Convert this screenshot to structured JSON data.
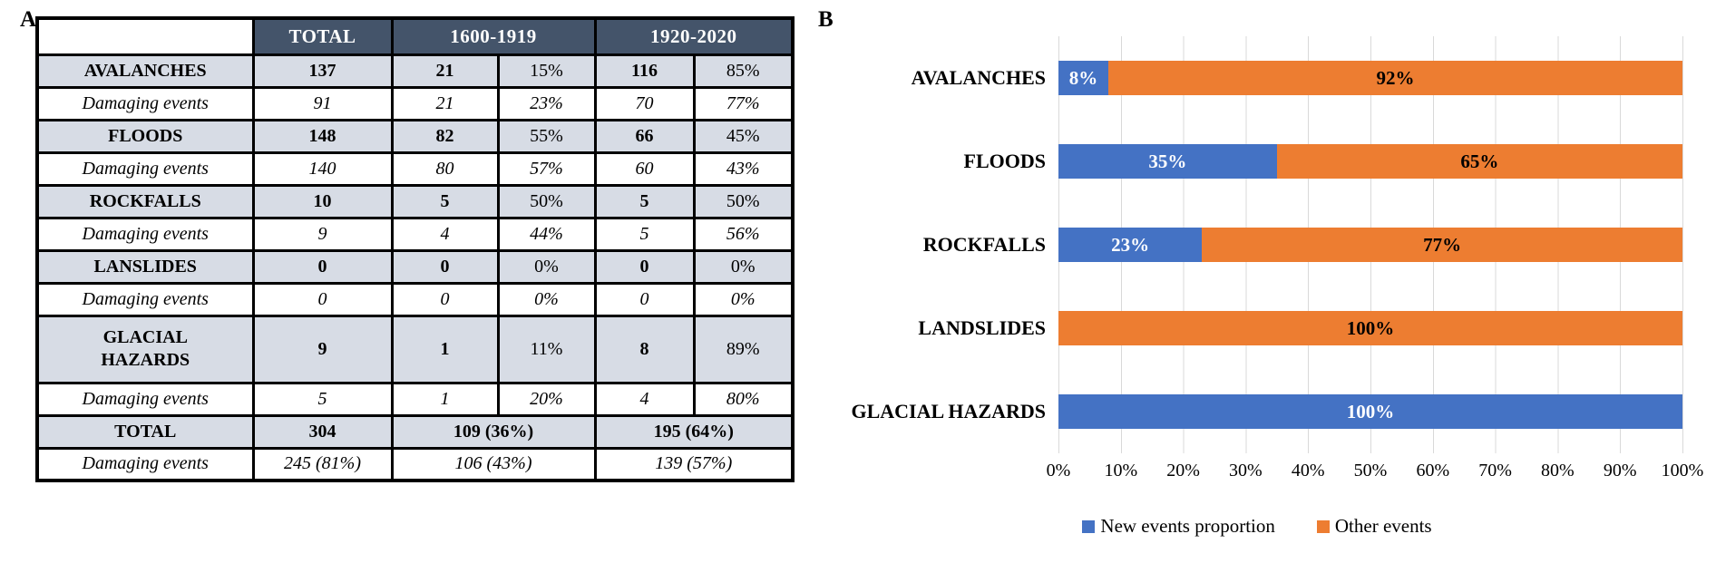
{
  "figure": {
    "panel_a_label": "A",
    "panel_b_label": "B"
  },
  "panel_a": {
    "table": {
      "headers": {
        "total": "TOTAL",
        "period1": "1600-1919",
        "period2": "1920-2020"
      },
      "rows": [
        {
          "label": "AVALANCHES",
          "total": "137",
          "p1c": "21",
          "p1p": "15%",
          "p2c": "116",
          "p2p": "85%"
        },
        {
          "label": "Damaging events",
          "total": "91",
          "p1c": "21",
          "p1p": "23%",
          "p2c": "70",
          "p2p": "77%"
        },
        {
          "label": "FLOODS",
          "total": "148",
          "p1c": "82",
          "p1p": "55%",
          "p2c": "66",
          "p2p": "45%"
        },
        {
          "label": "Damaging events",
          "total": "140",
          "p1c": "80",
          "p1p": "57%",
          "p2c": "60",
          "p2p": "43%"
        },
        {
          "label": "ROCKFALLS",
          "total": "10",
          "p1c": "5",
          "p1p": "50%",
          "p2c": "5",
          "p2p": "50%"
        },
        {
          "label": "Damaging events",
          "total": "9",
          "p1c": "4",
          "p1p": "44%",
          "p2c": "5",
          "p2p": "56%"
        },
        {
          "label": "LANSLIDES",
          "total": "0",
          "p1c": "0",
          "p1p": "0%",
          "p2c": "0",
          "p2p": "0%"
        },
        {
          "label": "Damaging events",
          "total": "0",
          "p1c": "0",
          "p1p": "0%",
          "p2c": "0",
          "p2p": "0%"
        },
        {
          "label": "GLACIAL HAZARDS",
          "total": "9",
          "p1c": "1",
          "p1p": "11%",
          "p2c": "8",
          "p2p": "89%"
        },
        {
          "label": "Damaging events",
          "total": "5",
          "p1c": "1",
          "p1p": "20%",
          "p2c": "4",
          "p2p": "80%"
        },
        {
          "label": "TOTAL",
          "total": "304",
          "p1": "109 (36%)",
          "p2": "195 (64%)"
        },
        {
          "label": "Damaging events",
          "total": "245 (81%)",
          "p1": "106 (43%)",
          "p2": "139 (57%)"
        }
      ]
    }
  },
  "chart_data": {
    "type": "bar",
    "orientation": "horizontal",
    "stacked": true,
    "categories": [
      "AVALANCHES",
      "FLOODS",
      "ROCKFALLS",
      "LANDSLIDES",
      "GLACIAL HAZARDS"
    ],
    "series": [
      {
        "name": "New events proportion",
        "color": "#4472C4",
        "values": [
          8,
          35,
          23,
          0,
          100
        ]
      },
      {
        "name": "Other events",
        "color": "#ED7D31",
        "values": [
          92,
          65,
          77,
          100,
          0
        ]
      }
    ],
    "labels": [
      [
        "8%",
        "92%"
      ],
      [
        "35%",
        "65%"
      ],
      [
        "23%",
        "77%"
      ],
      [
        "",
        "100%"
      ],
      [
        "100%",
        ""
      ]
    ],
    "x_ticks": [
      "0%",
      "10%",
      "20%",
      "30%",
      "40%",
      "50%",
      "60%",
      "70%",
      "80%",
      "90%",
      "100%"
    ],
    "xlim": [
      0,
      100
    ],
    "grid": true,
    "gridline_color": "#D9D9D9",
    "legend_position": "bottom"
  }
}
